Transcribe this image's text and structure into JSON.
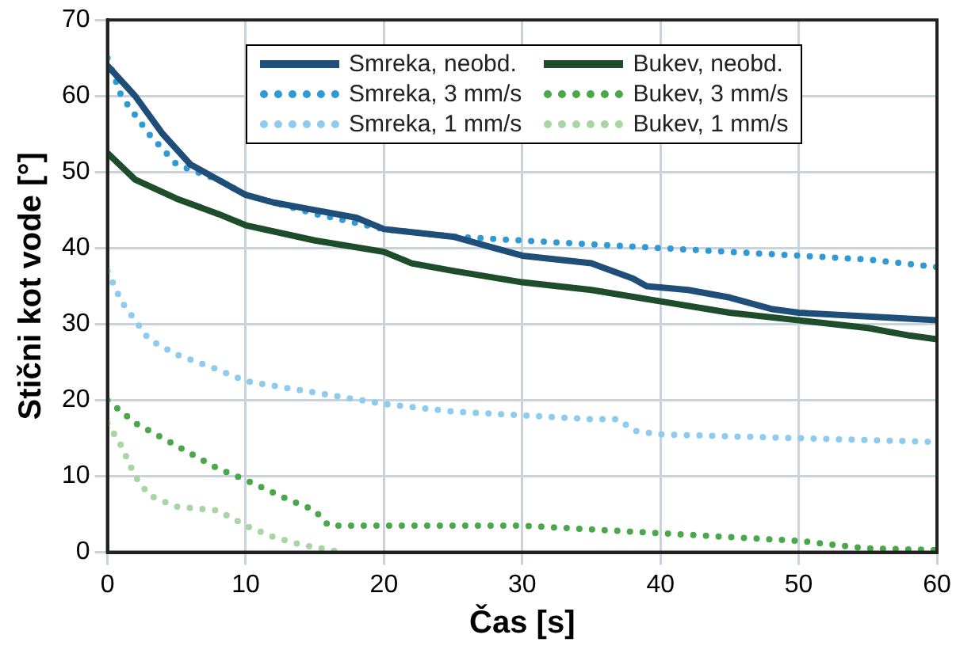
{
  "chart_data": {
    "type": "line",
    "xlabel": "Čas [s]",
    "ylabel": "Stični kot vode [°]",
    "xlim": [
      0,
      60
    ],
    "xticks": [
      0,
      10,
      20,
      30,
      40,
      50,
      60
    ],
    "ylim": [
      0,
      70
    ],
    "yticks": [
      0,
      10,
      20,
      30,
      40,
      50,
      60,
      70
    ],
    "grid": true,
    "legend": "top",
    "marker": "none",
    "series": [
      {
        "name": "Smreka, neobd.",
        "color": "#1f4e79",
        "line_style": "solid",
        "x": [
          0,
          2,
          4,
          6,
          8,
          10,
          12,
          15,
          18,
          20,
          25,
          28,
          30,
          35,
          38,
          39,
          42,
          45,
          48,
          50,
          55,
          60
        ],
        "values": [
          64,
          60,
          55,
          51,
          49,
          47,
          46,
          45,
          44,
          42.5,
          41.5,
          40,
          39,
          38,
          36,
          35,
          34.5,
          33.5,
          32,
          31.5,
          31,
          30.5
        ]
      },
      {
        "name": "Bukev, neobd.",
        "color": "#1e4d2b",
        "line_style": "solid",
        "x": [
          0,
          2,
          5,
          8,
          10,
          15,
          20,
          22,
          25,
          30,
          35,
          40,
          45,
          50,
          55,
          58,
          60
        ],
        "values": [
          52.5,
          49,
          46.5,
          44.5,
          43,
          41,
          39.5,
          38,
          37,
          35.5,
          34.5,
          33,
          31.5,
          30.5,
          29.5,
          28.5,
          28
        ]
      },
      {
        "name": "Smreka, 3 mm/s",
        "color": "#2e9ad6",
        "line_style": "dotted",
        "x": [
          0,
          1,
          3,
          5,
          8,
          10,
          15,
          20,
          25,
          30,
          35,
          40,
          45,
          50,
          55,
          60
        ],
        "values": [
          65,
          60,
          55,
          51,
          49,
          47,
          44.5,
          42.5,
          41.5,
          41,
          40.5,
          40,
          39.5,
          39,
          38.5,
          37.5
        ]
      },
      {
        "name": "Bukev, 3 mm/s",
        "color": "#4aa84a",
        "line_style": "dotted",
        "x": [
          0,
          2,
          5,
          8,
          10,
          13,
          15,
          16,
          20,
          30,
          40,
          50,
          55,
          60
        ],
        "values": [
          20,
          17,
          14,
          11,
          9.5,
          7,
          5.5,
          3.5,
          3.5,
          3.5,
          2.5,
          1.5,
          0.5,
          0.3
        ]
      },
      {
        "name": "Smreka, 1 mm/s",
        "color": "#8fcbee",
        "line_style": "dotted",
        "x": [
          0,
          1,
          3,
          5,
          8,
          10,
          15,
          20,
          25,
          30,
          35,
          37,
          38,
          40,
          50,
          60
        ],
        "values": [
          37,
          33,
          28,
          26,
          24,
          22.5,
          21,
          19.5,
          18.5,
          18,
          17.5,
          17.5,
          16,
          15.5,
          15,
          14.5
        ]
      },
      {
        "name": "Bukev, 1 mm/s",
        "color": "#a9d5a5",
        "line_style": "dotted",
        "x": [
          0,
          1,
          2,
          3,
          5,
          8,
          10,
          12,
          14,
          17
        ],
        "values": [
          17,
          14,
          10,
          7.5,
          6,
          5.5,
          3.5,
          2,
          1,
          0
        ]
      }
    ]
  }
}
